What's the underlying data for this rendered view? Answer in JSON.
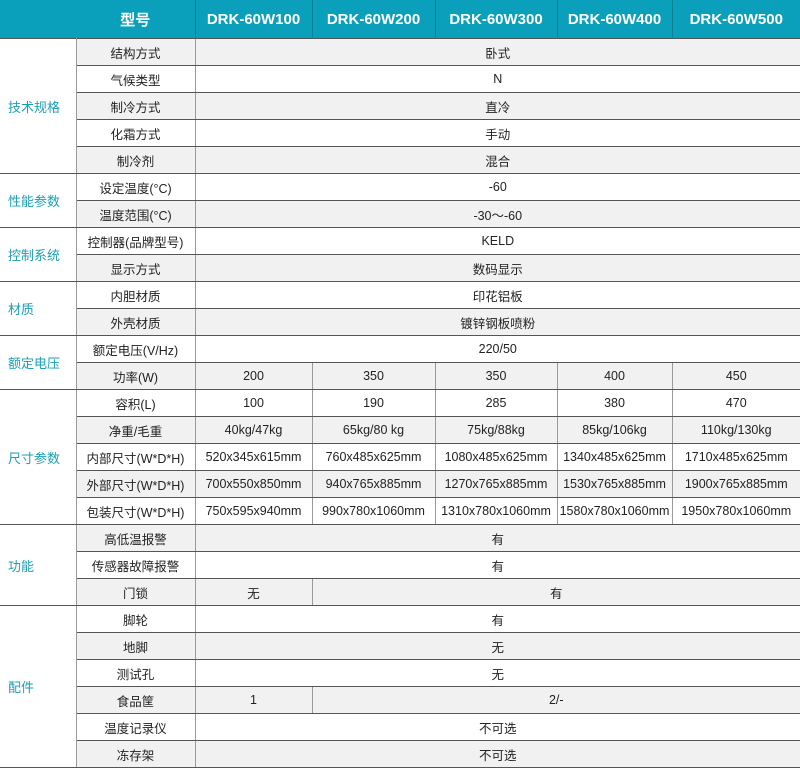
{
  "header": {
    "label": "型号",
    "models": [
      "DRK-60W100",
      "DRK-60W200",
      "DRK-60W300",
      "DRK-60W400",
      "DRK-60W500"
    ]
  },
  "colors": {
    "header_bg": "#0aa0bb",
    "category_text": "#1a9fb5",
    "alt_row_bg": "#f1f1f1"
  },
  "groups": [
    {
      "category": "技术规格",
      "rows": [
        {
          "label": "结构方式",
          "values": [
            {
              "text": "卧式",
              "span": 5
            }
          ]
        },
        {
          "label": "气候类型",
          "values": [
            {
              "text": "N",
              "span": 5
            }
          ]
        },
        {
          "label": "制冷方式",
          "values": [
            {
              "text": "直冷",
              "span": 5
            }
          ]
        },
        {
          "label": "化霜方式",
          "values": [
            {
              "text": "手动",
              "span": 5
            }
          ]
        },
        {
          "label": "制冷剂",
          "values": [
            {
              "text": "混合",
              "span": 5
            }
          ]
        }
      ]
    },
    {
      "category": "性能参数",
      "rows": [
        {
          "label": "设定温度(°C)",
          "values": [
            {
              "text": "-60",
              "span": 5
            }
          ]
        },
        {
          "label": "温度范围(°C)",
          "values": [
            {
              "text": "-30～-60",
              "span": 5
            }
          ]
        }
      ]
    },
    {
      "category": "控制系统",
      "rows": [
        {
          "label": "控制器(品牌型号)",
          "values": [
            {
              "text": "KELD",
              "span": 5
            }
          ]
        },
        {
          "label": "显示方式",
          "values": [
            {
              "text": "数码显示",
              "span": 5
            }
          ]
        }
      ]
    },
    {
      "category": "材质",
      "rows": [
        {
          "label": "内胆材质",
          "values": [
            {
              "text": "印花铝板",
              "span": 5
            }
          ]
        },
        {
          "label": "外壳材质",
          "values": [
            {
              "text": "镀锌钢板喷粉",
              "span": 5
            }
          ]
        }
      ]
    },
    {
      "category": "额定电压",
      "rows": [
        {
          "label": "额定电压(V/Hz)",
          "values": [
            {
              "text": "220/50",
              "span": 5
            }
          ]
        },
        {
          "label": "功率(W)",
          "values": [
            {
              "text": "200",
              "span": 1
            },
            {
              "text": "350",
              "span": 1
            },
            {
              "text": "350",
              "span": 1
            },
            {
              "text": "400",
              "span": 1
            },
            {
              "text": "450",
              "span": 1
            }
          ]
        }
      ]
    },
    {
      "category": "尺寸参数",
      "rows": [
        {
          "label": "容积(L)",
          "values": [
            {
              "text": "100",
              "span": 1
            },
            {
              "text": "190",
              "span": 1
            },
            {
              "text": "285",
              "span": 1
            },
            {
              "text": "380",
              "span": 1
            },
            {
              "text": "470",
              "span": 1
            }
          ]
        },
        {
          "label": "净重/毛重",
          "values": [
            {
              "text": "40kg/47kg",
              "span": 1
            },
            {
              "text": "65kg/80 kg",
              "span": 1
            },
            {
              "text": "75kg/88kg",
              "span": 1
            },
            {
              "text": "85kg/106kg",
              "span": 1
            },
            {
              "text": "110kg/130kg",
              "span": 1
            }
          ]
        },
        {
          "label": "内部尺寸(W*D*H)",
          "values": [
            {
              "text": "520x345x615mm",
              "span": 1
            },
            {
              "text": "760x485x625mm",
              "span": 1
            },
            {
              "text": "1080x485x625mm",
              "span": 1
            },
            {
              "text": "1340x485x625mm",
              "span": 1
            },
            {
              "text": "1710x485x625mm",
              "span": 1
            }
          ]
        },
        {
          "label": "外部尺寸(W*D*H)",
          "values": [
            {
              "text": "700x550x850mm",
              "span": 1
            },
            {
              "text": "940x765x885mm",
              "span": 1
            },
            {
              "text": "1270x765x885mm",
              "span": 1
            },
            {
              "text": "1530x765x885mm",
              "span": 1
            },
            {
              "text": "1900x765x885mm",
              "span": 1
            }
          ]
        },
        {
          "label": "包装尺寸(W*D*H)",
          "values": [
            {
              "text": "750x595x940mm",
              "span": 1
            },
            {
              "text": "990x780x1060mm",
              "span": 1
            },
            {
              "text": "1310x780x1060mm",
              "span": 1
            },
            {
              "text": "1580x780x1060mm",
              "span": 1
            },
            {
              "text": "1950x780x1060mm",
              "span": 1
            }
          ]
        }
      ]
    },
    {
      "category": "功能",
      "rows": [
        {
          "label": "高低温报警",
          "values": [
            {
              "text": "有",
              "span": 5
            }
          ]
        },
        {
          "label": "传感器故障报警",
          "values": [
            {
              "text": "有",
              "span": 5
            }
          ]
        },
        {
          "label": "门锁",
          "values": [
            {
              "text": "无",
              "span": 1
            },
            {
              "text": "有",
              "span": 4
            }
          ]
        }
      ]
    },
    {
      "category": "配件",
      "rows": [
        {
          "label": "脚轮",
          "values": [
            {
              "text": "有",
              "span": 5
            }
          ]
        },
        {
          "label": "地脚",
          "values": [
            {
              "text": "无",
              "span": 5
            }
          ]
        },
        {
          "label": "测试孔",
          "values": [
            {
              "text": "无",
              "span": 5
            }
          ]
        },
        {
          "label": "食品筐",
          "values": [
            {
              "text": "1",
              "span": 1
            },
            {
              "text": "2/-",
              "span": 4
            }
          ]
        },
        {
          "label": "温度记录仪",
          "values": [
            {
              "text": "不可选",
              "span": 5
            }
          ]
        },
        {
          "label": "冻存架",
          "values": [
            {
              "text": "不可选",
              "span": 5
            }
          ]
        }
      ]
    }
  ]
}
